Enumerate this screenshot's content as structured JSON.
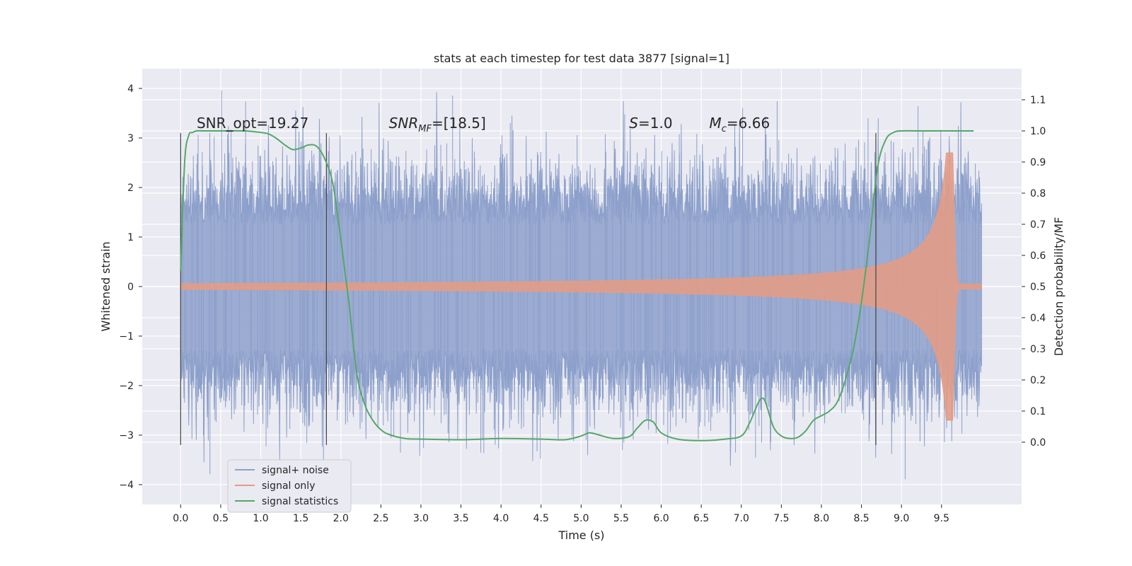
{
  "chart_data": {
    "type": "line",
    "title": "stats at each timestep for test data 3877 [signal=1]",
    "xlabel": "Time (s)",
    "ylabel": "Whitened strain",
    "y2label": "Detection probability/MF",
    "xlim": [
      -0.48,
      10.5
    ],
    "ylim": [
      -4.4,
      4.4
    ],
    "y2lim": [
      -0.2,
      1.2
    ],
    "xticks": [
      0.0,
      0.5,
      1.0,
      1.5,
      2.0,
      2.5,
      3.0,
      3.5,
      4.0,
      4.5,
      5.0,
      5.5,
      6.0,
      6.5,
      7.0,
      7.5,
      8.0,
      8.5,
      9.0,
      9.5
    ],
    "xtick_labels": [
      "0.0",
      "0.5",
      "1.0",
      "1.5",
      "2.0",
      "2.5",
      "3.0",
      "3.5",
      "4.0",
      "4.5",
      "5.0",
      "5.5",
      "6.0",
      "6.5",
      "7.0",
      "7.5",
      "8.0",
      "8.5",
      "9.0",
      "9.5"
    ],
    "yticks": [
      4,
      3,
      2,
      1,
      0,
      -1,
      -2,
      -3,
      -4
    ],
    "ytick_labels": [
      "4",
      "3",
      "2",
      "1",
      "0",
      "−1",
      "−2",
      "−3",
      "−4"
    ],
    "y2ticks": [
      1.1,
      1.0,
      0.9,
      0.8,
      0.7,
      0.6,
      0.5,
      0.4,
      0.3,
      0.2,
      0.1,
      0.0
    ],
    "y2tick_labels": [
      "1.1",
      "1.0",
      "0.9",
      "0.8",
      "0.7",
      "0.6",
      "0.5",
      "0.4",
      "0.3",
      "0.2",
      "0.1",
      "0.0"
    ],
    "grid": true,
    "legend_position": "lower-left",
    "series": [
      {
        "name": "signal+ noise",
        "axis": "left",
        "color": "#8da0cb",
        "kind": "noise",
        "x_range": [
          0.0,
          10.0
        ],
        "envelope_typical": [
          -1.8,
          1.8
        ],
        "extremes": [
          -4.1,
          4.0
        ]
      },
      {
        "name": "signal only",
        "axis": "left",
        "color": "#e29c86",
        "kind": "chirp",
        "x_range": [
          0.0,
          10.0
        ],
        "merger_time": 9.65,
        "peak_amplitude": 2.7
      },
      {
        "name": "signal statistics",
        "axis": "right",
        "color": "#55a868",
        "kind": "line",
        "x": [
          0.0,
          0.05,
          0.1,
          0.15,
          0.2,
          0.3,
          0.5,
          0.8,
          1.0,
          1.1,
          1.2,
          1.3,
          1.4,
          1.5,
          1.6,
          1.7,
          1.8,
          1.9,
          2.0,
          2.1,
          2.2,
          2.3,
          2.4,
          2.5,
          2.6,
          2.8,
          3.0,
          3.5,
          4.0,
          4.5,
          4.8,
          5.0,
          5.1,
          5.2,
          5.4,
          5.6,
          5.7,
          5.8,
          5.9,
          6.0,
          6.2,
          6.5,
          6.8,
          7.0,
          7.1,
          7.2,
          7.25,
          7.3,
          7.4,
          7.5,
          7.6,
          7.7,
          7.8,
          7.9,
          8.0,
          8.1,
          8.2,
          8.3,
          8.4,
          8.5,
          8.6,
          8.7,
          8.8,
          8.9,
          9.0,
          9.2,
          9.5,
          9.9
        ],
        "y": [
          0.55,
          0.9,
          0.985,
          0.995,
          1.0,
          1.0,
          1.0,
          1.0,
          0.995,
          0.99,
          0.975,
          0.955,
          0.94,
          0.945,
          0.955,
          0.95,
          0.91,
          0.83,
          0.65,
          0.45,
          0.22,
          0.12,
          0.07,
          0.04,
          0.025,
          0.012,
          0.01,
          0.008,
          0.012,
          0.01,
          0.008,
          0.02,
          0.03,
          0.025,
          0.012,
          0.018,
          0.045,
          0.07,
          0.065,
          0.03,
          0.01,
          0.005,
          0.01,
          0.02,
          0.06,
          0.12,
          0.14,
          0.13,
          0.05,
          0.02,
          0.012,
          0.015,
          0.035,
          0.07,
          0.085,
          0.1,
          0.13,
          0.2,
          0.3,
          0.45,
          0.65,
          0.88,
          0.97,
          0.995,
          1.0,
          1.0,
          1.0,
          1.0
        ]
      }
    ],
    "vertical_lines": [
      {
        "x": 0.0,
        "y_range": [
          -3.2,
          3.1
        ]
      },
      {
        "x": 1.82,
        "y_range": [
          -3.2,
          3.1
        ]
      },
      {
        "x": 8.68,
        "y_range": [
          -3.2,
          3.1
        ]
      }
    ],
    "annotations": [
      {
        "text": "SNR_opt=19.27",
        "x": 0.2,
        "y": 3.2
      },
      {
        "text": "SNR_MF=[18.5]",
        "x": 2.6,
        "y": 3.2
      },
      {
        "text": "S=1.0",
        "x": 5.6,
        "y": 3.2
      },
      {
        "text": "M_c=6.66",
        "x": 6.6,
        "y": 3.2
      }
    ]
  }
}
